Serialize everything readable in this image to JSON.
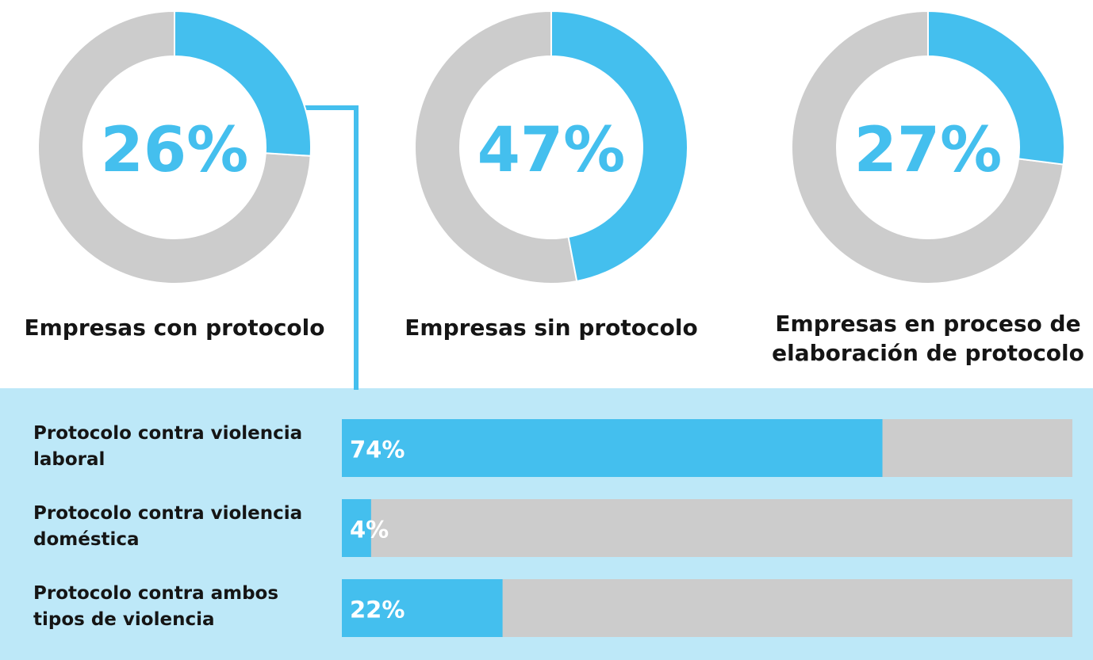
{
  "chart_data": [
    {
      "type": "donut",
      "categories": [
        "Empresas con protocolo",
        "Empresas sin protocolo",
        "Empresas en proceso de elaboración de protocolo"
      ],
      "values": [
        26,
        47,
        27
      ],
      "value_labels": [
        "26%",
        "47%",
        "27%"
      ],
      "xlim": [
        0,
        100
      ],
      "color": "#44bfee",
      "track_color": "#cccccc"
    },
    {
      "type": "bar",
      "orientation": "horizontal",
      "categories": [
        "Protocolo contra violencia laboral",
        "Protocolo contra violencia doméstica",
        "Protocolo contra ambos tipos de violencia"
      ],
      "values": [
        74,
        4,
        22
      ],
      "value_labels": [
        "74%",
        "4%",
        "22%"
      ],
      "xlim": [
        0,
        100
      ],
      "color": "#44bfee",
      "track_color": "#cccccc"
    }
  ]
}
